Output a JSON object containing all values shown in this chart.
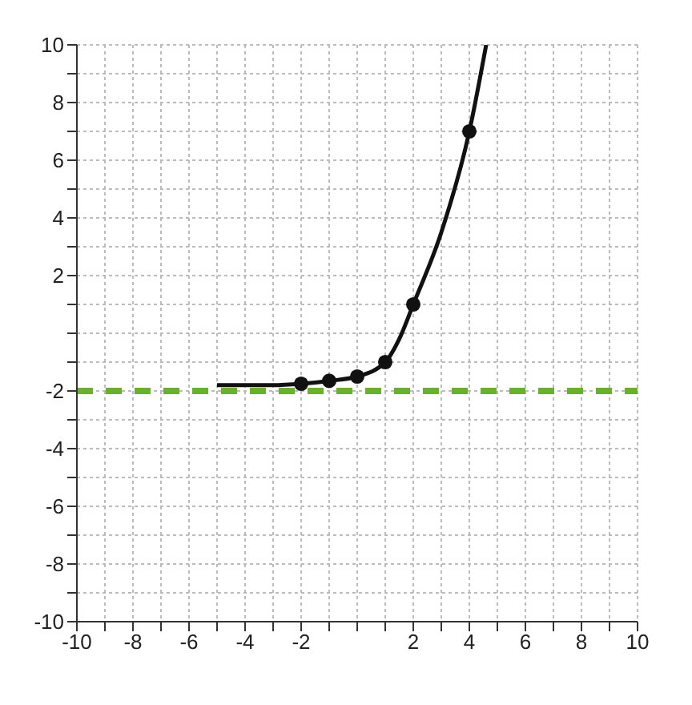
{
  "chart_data": {
    "type": "line",
    "xlim": [
      -10,
      10
    ],
    "ylim": [
      -10,
      10
    ],
    "xticks": [
      -10,
      {
        "value": -9,
        "label": null
      },
      -8,
      {
        "value": -7,
        "label": null
      },
      -6,
      {
        "value": -5,
        "label": null
      },
      -4,
      {
        "value": -3,
        "label": null
      },
      -2,
      {
        "value": -1,
        "label": null
      },
      {
        "value": 0,
        "label": null
      },
      {
        "value": 1,
        "label": null
      },
      2,
      {
        "value": 3,
        "label": null
      },
      4,
      {
        "value": 5,
        "label": null
      },
      6,
      {
        "value": 7,
        "label": null
      },
      8,
      {
        "value": 9,
        "label": null
      },
      10
    ],
    "yticks": [
      -10,
      {
        "value": -9,
        "label": null
      },
      -8,
      {
        "value": -7,
        "label": null
      },
      -6,
      {
        "value": -5,
        "label": null
      },
      -4,
      {
        "value": -3,
        "label": null
      },
      -2,
      {
        "value": -1,
        "label": null
      },
      {
        "value": 0,
        "label": null
      },
      {
        "value": 1,
        "label": null
      },
      2,
      {
        "value": 3,
        "label": null
      },
      4,
      {
        "value": 5,
        "label": null
      },
      6,
      {
        "value": 7,
        "label": null
      },
      8,
      {
        "value": 9,
        "label": null
      },
      10
    ],
    "grid": true,
    "series": [
      {
        "color": "#111111",
        "marker": "none",
        "x": [
          -5,
          -4,
          -3,
          -2,
          -1,
          0,
          1,
          1.5,
          2,
          3,
          4,
          4.6
        ],
        "values": [
          -1.8,
          -1.8,
          -1.8,
          -1.75,
          -1.65,
          -1.5,
          -1,
          -0.2,
          1,
          3.5,
          7,
          10
        ]
      },
      {
        "type": "scatter",
        "color": "#111111",
        "marker": "circle",
        "x": [
          -2,
          -1,
          0,
          1,
          2,
          4
        ],
        "values": [
          -1.75,
          -1.65,
          -1.5,
          -1,
          1,
          7
        ]
      }
    ],
    "ref_lines": [
      {
        "axis": "y",
        "value": -2,
        "color": "#6ab02e",
        "line_style": "dashed"
      }
    ]
  }
}
